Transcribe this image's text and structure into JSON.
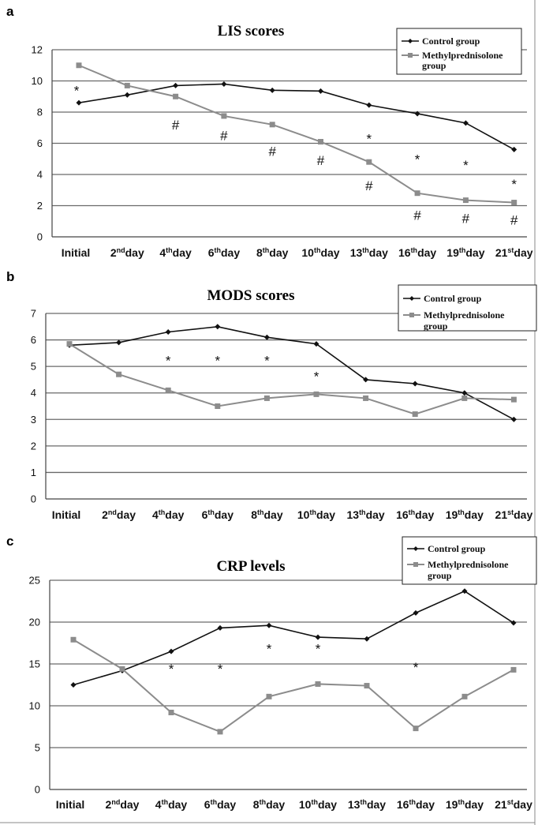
{
  "colors": {
    "control": "#111111",
    "methylprednisolone": "#8c8c8c",
    "grid": "#6a6a6a",
    "axis": "#444444",
    "frame": "#222222"
  },
  "chart_data": [
    {
      "panel": "a",
      "type": "line",
      "title": "LIS scores",
      "xlabel": "",
      "ylabel": "",
      "categories": [
        {
          "base": "Initial",
          "sup": "",
          "tail": ""
        },
        {
          "base": "2",
          "sup": "nd",
          "tail": "day"
        },
        {
          "base": "4",
          "sup": "th",
          "tail": "day"
        },
        {
          "base": "6",
          "sup": "th",
          "tail": "day"
        },
        {
          "base": "8",
          "sup": "th",
          "tail": "day"
        },
        {
          "base": "10",
          "sup": "th",
          "tail": "day"
        },
        {
          "base": "13",
          "sup": "th",
          "tail": "day"
        },
        {
          "base": "16",
          "sup": "th",
          "tail": "day"
        },
        {
          "base": "19",
          "sup": "th",
          "tail": "day"
        },
        {
          "base": "21",
          "sup": "st",
          "tail": "day"
        }
      ],
      "ylim": [
        0,
        12
      ],
      "yticks": [
        0,
        2,
        4,
        6,
        8,
        10,
        12
      ],
      "grid": true,
      "legend": {
        "position": "top-right",
        "entries": [
          "Control group",
          "Methylprednisolone group"
        ]
      },
      "series": [
        {
          "name": "Control group",
          "values": [
            8.6,
            9.1,
            9.7,
            9.8,
            9.4,
            9.35,
            8.45,
            7.9,
            7.3,
            5.6
          ]
        },
        {
          "name": "Methylprednisolone group",
          "values": [
            11.0,
            9.7,
            9.0,
            7.75,
            7.2,
            6.1,
            4.8,
            2.8,
            2.35,
            2.2
          ]
        }
      ],
      "annotations": [
        {
          "text": "*",
          "x": 0,
          "y": 9.6
        },
        {
          "text": "#",
          "x": 2,
          "y": 7.2
        },
        {
          "text": "#",
          "x": 3,
          "y": 6.5
        },
        {
          "text": "#",
          "x": 4,
          "y": 5.5
        },
        {
          "text": "#",
          "x": 5,
          "y": 4.9
        },
        {
          "text": "*",
          "x": 6,
          "y": 6.5
        },
        {
          "text": "#",
          "x": 6,
          "y": 3.3
        },
        {
          "text": "*",
          "x": 7,
          "y": 5.2
        },
        {
          "text": "#",
          "x": 7,
          "y": 1.4
        },
        {
          "text": "*",
          "x": 8,
          "y": 4.8
        },
        {
          "text": "#",
          "x": 8,
          "y": 1.2
        },
        {
          "text": "*",
          "x": 9,
          "y": 3.6
        },
        {
          "text": "#",
          "x": 9,
          "y": 1.1
        }
      ]
    },
    {
      "panel": "b",
      "type": "line",
      "title": "MODS scores",
      "xlabel": "",
      "ylabel": "",
      "categories": [
        {
          "base": "Initial",
          "sup": "",
          "tail": ""
        },
        {
          "base": "2",
          "sup": "nd",
          "tail": "day"
        },
        {
          "base": "4",
          "sup": "th",
          "tail": "day"
        },
        {
          "base": "6",
          "sup": "th",
          "tail": "day"
        },
        {
          "base": "8",
          "sup": "th",
          "tail": "day"
        },
        {
          "base": "10",
          "sup": "th",
          "tail": "day"
        },
        {
          "base": "13",
          "sup": "th",
          "tail": "day"
        },
        {
          "base": "16",
          "sup": "th",
          "tail": "day"
        },
        {
          "base": "19",
          "sup": "th",
          "tail": "day"
        },
        {
          "base": "21",
          "sup": "st",
          "tail": "day"
        }
      ],
      "ylim": [
        0,
        7
      ],
      "yticks": [
        0,
        1,
        2,
        3,
        4,
        5,
        6,
        7
      ],
      "grid": true,
      "legend": {
        "position": "top-right",
        "entries": [
          "Control group",
          "Methylprednisolone group"
        ]
      },
      "series": [
        {
          "name": "Control group",
          "values": [
            5.8,
            5.9,
            6.3,
            6.5,
            6.1,
            5.85,
            4.5,
            4.35,
            4.0,
            3.0
          ]
        },
        {
          "name": "Methylprednisolone group",
          "values": [
            5.85,
            4.7,
            4.1,
            3.5,
            3.8,
            3.95,
            3.8,
            3.2,
            3.8,
            3.75
          ]
        }
      ],
      "annotations": [
        {
          "text": "*",
          "x": 2,
          "y": 5.35
        },
        {
          "text": "*",
          "x": 3,
          "y": 5.35
        },
        {
          "text": "*",
          "x": 4,
          "y": 5.35
        },
        {
          "text": "*",
          "x": 5,
          "y": 4.75
        }
      ]
    },
    {
      "panel": "c",
      "type": "line",
      "title": "CRP levels",
      "xlabel": "",
      "ylabel": "",
      "categories": [
        {
          "base": "Initial",
          "sup": "",
          "tail": ""
        },
        {
          "base": "2",
          "sup": "nd",
          "tail": "day"
        },
        {
          "base": "4",
          "sup": "th",
          "tail": "day"
        },
        {
          "base": "6",
          "sup": "th",
          "tail": "day"
        },
        {
          "base": "8",
          "sup": "th",
          "tail": "day"
        },
        {
          "base": "10",
          "sup": "th",
          "tail": "day"
        },
        {
          "base": "13",
          "sup": "th",
          "tail": "day"
        },
        {
          "base": "16",
          "sup": "th",
          "tail": "day"
        },
        {
          "base": "19",
          "sup": "th",
          "tail": "day"
        },
        {
          "base": "21",
          "sup": "st",
          "tail": "day"
        }
      ],
      "ylim": [
        0,
        25
      ],
      "yticks": [
        0,
        5,
        10,
        15,
        20,
        25
      ],
      "grid": true,
      "legend": {
        "position": "top-right",
        "entries": [
          "Control group",
          "Methylprednisolone group"
        ]
      },
      "series": [
        {
          "name": "Control group",
          "values": [
            12.5,
            14.2,
            16.5,
            19.3,
            19.6,
            18.2,
            18.0,
            21.1,
            23.7,
            19.9
          ]
        },
        {
          "name": "Methylprednisolone group",
          "values": [
            17.9,
            14.4,
            9.2,
            6.9,
            11.1,
            12.6,
            12.4,
            7.3,
            11.1,
            14.3
          ]
        }
      ],
      "annotations": [
        {
          "text": "*",
          "x": 2,
          "y": 14.8
        },
        {
          "text": "*",
          "x": 3,
          "y": 14.8
        },
        {
          "text": "*",
          "x": 4,
          "y": 17.2
        },
        {
          "text": "*",
          "x": 5,
          "y": 17.2
        },
        {
          "text": "*",
          "x": 7,
          "y": 15.0
        }
      ]
    }
  ]
}
